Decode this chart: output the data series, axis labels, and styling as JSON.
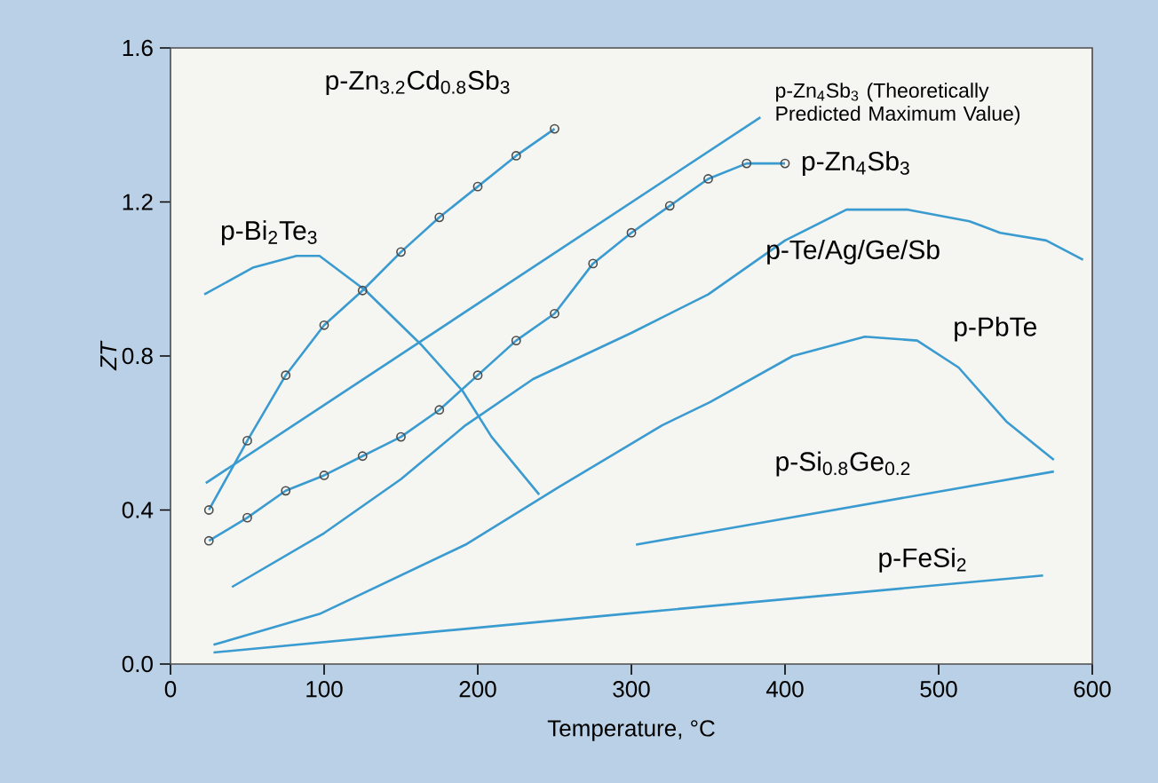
{
  "chart_data": {
    "type": "line",
    "xlabel": "Temperature, °C",
    "ylabel": "ZT",
    "xlim": [
      0,
      600
    ],
    "xticks": [
      0,
      100,
      200,
      300,
      400,
      500,
      600
    ],
    "ylim": [
      0,
      1.6
    ],
    "yticks": [
      {
        "value": 0,
        "label": "0.0"
      },
      0.4,
      0.8,
      1.2,
      1.6
    ],
    "grid": false,
    "line_style": "solid",
    "series": [
      {
        "name": "p-Zn$_{3.2}$Cd$_{0.8}$Sb$_{3}$",
        "color": "#3a9bd0",
        "marker": "circle",
        "x": [
          25,
          50,
          75,
          100,
          125,
          150,
          175,
          200,
          225,
          250
        ],
        "values": [
          0.4,
          0.58,
          0.75,
          0.88,
          0.97,
          1.07,
          1.16,
          1.24,
          1.32,
          1.39
        ]
      },
      {
        "name": "p-Zn$_{4}$Sb$_{3}$ (Theoretically Predicted Maximum Value)",
        "color": "#3a9bd0",
        "marker": "none",
        "x": [
          23,
          384
        ],
        "values": [
          0.47,
          1.42
        ]
      },
      {
        "name": "p-Zn$_{4}$Sb$_{3}$",
        "color": "#3a9bd0",
        "marker": "circle",
        "x": [
          25,
          50,
          75,
          100,
          125,
          150,
          175,
          200,
          225,
          250,
          275,
          300,
          325,
          350,
          375,
          400
        ],
        "values": [
          0.32,
          0.38,
          0.45,
          0.49,
          0.54,
          0.59,
          0.66,
          0.75,
          0.84,
          0.91,
          1.04,
          1.12,
          1.19,
          1.26,
          1.3,
          1.3
        ]
      },
      {
        "name": "p-Bi$_{2}$Te$_{3}$",
        "color": "#3a9bd0",
        "marker": "none",
        "x": [
          22,
          54,
          82,
          97,
          127,
          163,
          190,
          209,
          240
        ],
        "values": [
          0.96,
          1.03,
          1.06,
          1.06,
          0.97,
          0.83,
          0.71,
          0.59,
          0.44
        ]
      },
      {
        "name": "p-Te/Ag/Ge/Sb",
        "color": "#3a9bd0",
        "marker": "none",
        "x": [
          40,
          100,
          150,
          192,
          236,
          300,
          350,
          400,
          440,
          480,
          520,
          540,
          570,
          594
        ],
        "values": [
          0.2,
          0.34,
          0.48,
          0.62,
          0.74,
          0.86,
          0.96,
          1.1,
          1.18,
          1.18,
          1.15,
          1.12,
          1.1,
          1.05
        ]
      },
      {
        "name": "p-PbTe",
        "color": "#3a9bd0",
        "marker": "none",
        "x": [
          28,
          97,
          192,
          253,
          320,
          351,
          405,
          452,
          486,
          513,
          544,
          575
        ],
        "values": [
          0.05,
          0.13,
          0.31,
          0.46,
          0.62,
          0.68,
          0.8,
          0.85,
          0.84,
          0.77,
          0.63,
          0.53
        ]
      },
      {
        "name": "p-Si$_{0.8}$Ge$_{0.2}$",
        "color": "#3a9bd0",
        "marker": "none",
        "x": [
          303,
          575
        ],
        "values": [
          0.31,
          0.5
        ]
      },
      {
        "name": "p-FeSi$_{2}$",
        "color": "#3a9bd0",
        "marker": "none",
        "x": [
          28,
          295,
          568
        ],
        "values": [
          0.03,
          0.13,
          0.23
        ]
      }
    ]
  }
}
